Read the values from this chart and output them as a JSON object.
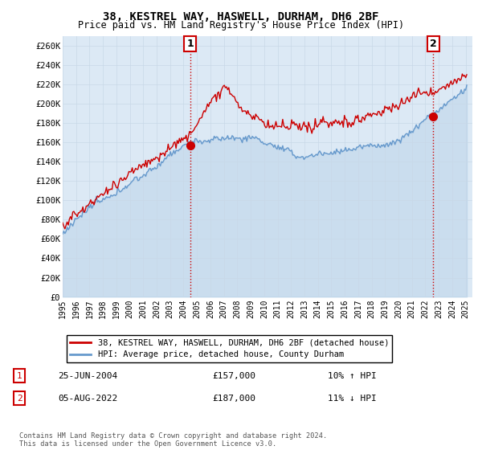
{
  "title": "38, KESTREL WAY, HASWELL, DURHAM, DH6 2BF",
  "subtitle": "Price paid vs. HM Land Registry's House Price Index (HPI)",
  "ylabel_ticks": [
    "£0",
    "£20K",
    "£40K",
    "£60K",
    "£80K",
    "£100K",
    "£120K",
    "£140K",
    "£160K",
    "£180K",
    "£200K",
    "£220K",
    "£240K",
    "£260K"
  ],
  "ytick_values": [
    0,
    20000,
    40000,
    60000,
    80000,
    100000,
    120000,
    140000,
    160000,
    180000,
    200000,
    220000,
    240000,
    260000
  ],
  "ylim": [
    0,
    270000
  ],
  "xlim_start": 1995.0,
  "xlim_end": 2025.5,
  "xticks": [
    1995,
    1996,
    1997,
    1998,
    1999,
    2000,
    2001,
    2002,
    2003,
    2004,
    2005,
    2006,
    2007,
    2008,
    2009,
    2010,
    2011,
    2012,
    2013,
    2014,
    2015,
    2016,
    2017,
    2018,
    2019,
    2020,
    2021,
    2022,
    2023,
    2024,
    2025
  ],
  "red_color": "#cc0000",
  "blue_color": "#6699cc",
  "plot_bg_color": "#dce9f5",
  "vline_color": "#cc0000",
  "vline_style": ":",
  "marker1_x": 2004.48,
  "marker1_y": 157000,
  "marker1_label": "1",
  "marker2_x": 2022.58,
  "marker2_y": 187000,
  "marker2_label": "2",
  "legend_label_red": "38, KESTREL WAY, HASWELL, DURHAM, DH6 2BF (detached house)",
  "legend_label_blue": "HPI: Average price, detached house, County Durham",
  "annotation1_date": "25-JUN-2004",
  "annotation1_price": "£157,000",
  "annotation1_hpi": "10% ↑ HPI",
  "annotation2_date": "05-AUG-2022",
  "annotation2_price": "£187,000",
  "annotation2_hpi": "11% ↓ HPI",
  "footer": "Contains HM Land Registry data © Crown copyright and database right 2024.\nThis data is licensed under the Open Government Licence v3.0.",
  "background_color": "#ffffff",
  "grid_color": "#c8d8e8"
}
